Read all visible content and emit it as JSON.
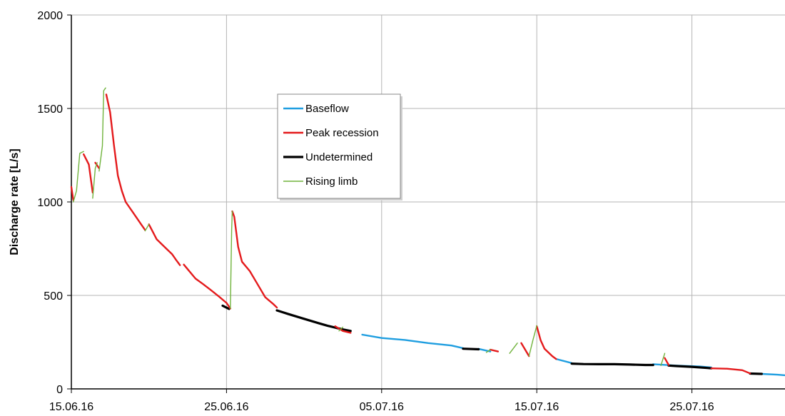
{
  "chart_data": {
    "type": "line",
    "title": "",
    "xlabel": "",
    "ylabel": "Discharge rate [L/s]",
    "xlim": [
      "2016-06-15",
      "2016-07-31"
    ],
    "ylim": [
      0,
      2000
    ],
    "yticks": [
      0,
      500,
      1000,
      1500,
      2000
    ],
    "xtick_labels": [
      "15.06.16",
      "25.06.16",
      "05.07.16",
      "15.07.16",
      "25.07.16"
    ],
    "xticks": [
      "2016-06-15",
      "2016-06-25",
      "2016-07-05",
      "2016-07-15",
      "2016-07-25"
    ],
    "grid": true,
    "legend_placement": "upper-center",
    "colors": {
      "Baseflow": "#1f9ee0",
      "Peak recession": "#e41a1c",
      "Undetermined": "#000000",
      "Rising limb": "#70b33c",
      "grid": "#b5b5b5"
    },
    "series": [
      {
        "name": "Baseflow",
        "segments": [
          [
            [
              "2016-07-03 18:00",
              290
            ],
            [
              "2016-07-05 00:00",
              272
            ],
            [
              "2016-07-06 12:00",
              262
            ],
            [
              "2016-07-08 00:00",
              245
            ],
            [
              "2016-07-09 12:00",
              232
            ],
            [
              "2016-07-10 06:00",
              218
            ]
          ],
          [
            [
              "2016-07-11 06:00",
              214
            ],
            [
              "2016-07-12 00:00",
              200
            ]
          ],
          [
            [
              "2016-07-16 06:00",
              160
            ],
            [
              "2016-07-17 06:00",
              138
            ]
          ],
          [
            [
              "2016-07-22 12:00",
              132
            ],
            [
              "2016-07-24 00:00",
              125
            ],
            [
              "2016-07-25 12:00",
              120
            ],
            [
              "2016-07-26 06:00",
              115
            ]
          ],
          [
            [
              "2016-07-29 12:00",
              80
            ],
            [
              "2016-07-30 12:00",
              76
            ],
            [
              "2016-07-31 00:00",
              73
            ]
          ]
        ]
      },
      {
        "name": "Peak recession",
        "segments": [
          [
            [
              "2016-06-15 00:00",
              1080
            ],
            [
              "2016-06-15 03:00",
              1010
            ]
          ],
          [
            [
              "2016-06-15 19:00",
              1255
            ],
            [
              "2016-06-16 03:00",
              1200
            ],
            [
              "2016-06-16 09:00",
              1050
            ]
          ],
          [
            [
              "2016-06-16 13:00",
              1210
            ],
            [
              "2016-06-16 19:00",
              1180
            ]
          ],
          [
            [
              "2016-06-17 06:00",
              1575
            ],
            [
              "2016-06-17 12:00",
              1480
            ],
            [
              "2016-06-17 18:00",
              1300
            ],
            [
              "2016-06-18 00:00",
              1140
            ],
            [
              "2016-06-18 06:00",
              1060
            ],
            [
              "2016-06-18 12:00",
              1000
            ],
            [
              "2016-06-19 00:00",
              940
            ],
            [
              "2016-06-19 12:00",
              880
            ],
            [
              "2016-06-19 18:00",
              850
            ]
          ],
          [
            [
              "2016-06-20 00:00",
              880
            ],
            [
              "2016-06-20 12:00",
              800
            ],
            [
              "2016-06-21 00:00",
              760
            ],
            [
              "2016-06-21 12:00",
              720
            ],
            [
              "2016-06-21 18:00",
              690
            ],
            [
              "2016-06-22 00:00",
              662
            ]
          ],
          [
            [
              "2016-06-22 06:00",
              665
            ],
            [
              "2016-06-22 12:00",
              640
            ],
            [
              "2016-06-23 00:00",
              590
            ],
            [
              "2016-06-23 12:00",
              560
            ],
            [
              "2016-06-24 00:00",
              528
            ],
            [
              "2016-06-24 12:00",
              495
            ],
            [
              "2016-06-25 00:00",
              460
            ],
            [
              "2016-06-25 06:00",
              430
            ]
          ],
          [
            [
              "2016-06-25 09:00",
              950
            ],
            [
              "2016-06-25 12:00",
              920
            ],
            [
              "2016-06-25 18:00",
              760
            ],
            [
              "2016-06-26 00:00",
              680
            ],
            [
              "2016-06-26 12:00",
              630
            ],
            [
              "2016-06-27 00:00",
              560
            ],
            [
              "2016-06-27 12:00",
              490
            ],
            [
              "2016-06-28 00:00",
              455
            ],
            [
              "2016-06-28 06:00",
              435
            ]
          ],
          [
            [
              "2016-07-02 00:00",
              335
            ],
            [
              "2016-07-02 12:00",
              310
            ],
            [
              "2016-07-03 00:00",
              300
            ]
          ],
          [
            [
              "2016-07-12 00:00",
              210
            ],
            [
              "2016-07-12 12:00",
              200
            ]
          ],
          [
            [
              "2016-07-14 00:00",
              245
            ],
            [
              "2016-07-14 06:00",
              210
            ],
            [
              "2016-07-14 12:00",
              175
            ]
          ],
          [
            [
              "2016-07-15 00:00",
              335
            ],
            [
              "2016-07-15 06:00",
              260
            ],
            [
              "2016-07-15 12:00",
              215
            ],
            [
              "2016-07-16 00:00",
              175
            ],
            [
              "2016-07-16 06:00",
              160
            ]
          ],
          [
            [
              "2016-07-26 06:00",
              110
            ],
            [
              "2016-07-27 06:00",
              108
            ],
            [
              "2016-07-28 06:00",
              100
            ],
            [
              "2016-07-28 18:00",
              83
            ]
          ],
          [
            [
              "2016-07-23 06:00",
              165
            ],
            [
              "2016-07-23 12:00",
              128
            ]
          ]
        ]
      },
      {
        "name": "Undetermined",
        "segments": [
          [
            [
              "2016-06-24 18:00",
              445
            ],
            [
              "2016-06-25 04:00",
              428
            ]
          ],
          [
            [
              "2016-06-28 06:00",
              420
            ],
            [
              "2016-06-29 00:00",
              400
            ],
            [
              "2016-06-30 00:00",
              375
            ],
            [
              "2016-07-01 00:00",
              350
            ],
            [
              "2016-07-01 12:00",
              338
            ],
            [
              "2016-07-02 12:00",
              318
            ],
            [
              "2016-07-03 00:00",
              310
            ]
          ],
          [
            [
              "2016-07-10 06:00",
              215
            ],
            [
              "2016-07-11 06:00",
              212
            ]
          ],
          [
            [
              "2016-07-17 06:00",
              135
            ],
            [
              "2016-07-18 00:00",
              133
            ],
            [
              "2016-07-19 00:00",
              132
            ],
            [
              "2016-07-20 00:00",
              132
            ],
            [
              "2016-07-21 00:00",
              130
            ],
            [
              "2016-07-22 00:00",
              128
            ],
            [
              "2016-07-22 12:00",
              128
            ]
          ],
          [
            [
              "2016-07-23 12:00",
              125
            ],
            [
              "2016-07-24 00:00",
              122
            ],
            [
              "2016-07-25 00:00",
              118
            ],
            [
              "2016-07-26 00:00",
              112
            ],
            [
              "2016-07-26 06:00",
              110
            ]
          ],
          [
            [
              "2016-07-28 18:00",
              82
            ],
            [
              "2016-07-29 12:00",
              80
            ]
          ]
        ]
      },
      {
        "name": "Rising limb",
        "segments": [
          [
            [
              "2016-06-15 03:00",
              1000
            ],
            [
              "2016-06-15 08:00",
              1060
            ],
            [
              "2016-06-15 13:00",
              1260
            ],
            [
              "2016-06-15 19:00",
              1270
            ]
          ],
          [
            [
              "2016-06-16 09:00",
              1020
            ],
            [
              "2016-06-16 13:00",
              1180
            ],
            [
              "2016-06-16 16:00",
              1210
            ]
          ],
          [
            [
              "2016-06-16 19:00",
              1165
            ],
            [
              "2016-06-17 00:00",
              1300
            ],
            [
              "2016-06-17 02:00",
              1595
            ],
            [
              "2016-06-17 05:00",
              1610
            ]
          ],
          [
            [
              "2016-06-19 18:00",
              845
            ],
            [
              "2016-06-20 00:00",
              880
            ]
          ],
          [
            [
              "2016-06-25 06:00",
              430
            ],
            [
              "2016-06-25 08:00",
              850
            ],
            [
              "2016-06-25 09:00",
              950
            ]
          ],
          [
            [
              "2016-07-02 06:00",
              310
            ],
            [
              "2016-07-02 12:00",
              330
            ]
          ],
          [
            [
              "2016-07-11 18:00",
              195
            ],
            [
              "2016-07-12 00:00",
              210
            ]
          ],
          [
            [
              "2016-07-13 06:00",
              190
            ],
            [
              "2016-07-13 18:00",
              245
            ]
          ],
          [
            [
              "2016-07-14 12:00",
              175
            ],
            [
              "2016-07-14 18:00",
              260
            ],
            [
              "2016-07-15 00:00",
              338
            ]
          ],
          [
            [
              "2016-07-23 00:00",
              125
            ],
            [
              "2016-07-23 06:00",
              190
            ]
          ]
        ]
      }
    ]
  },
  "legend": {
    "items": [
      {
        "label": "Baseflow",
        "color": "#1f9ee0"
      },
      {
        "label": "Peak recession",
        "color": "#e41a1c"
      },
      {
        "label": "Undetermined",
        "color": "#000000"
      },
      {
        "label": "Rising limb",
        "color": "#70b33c"
      }
    ]
  }
}
